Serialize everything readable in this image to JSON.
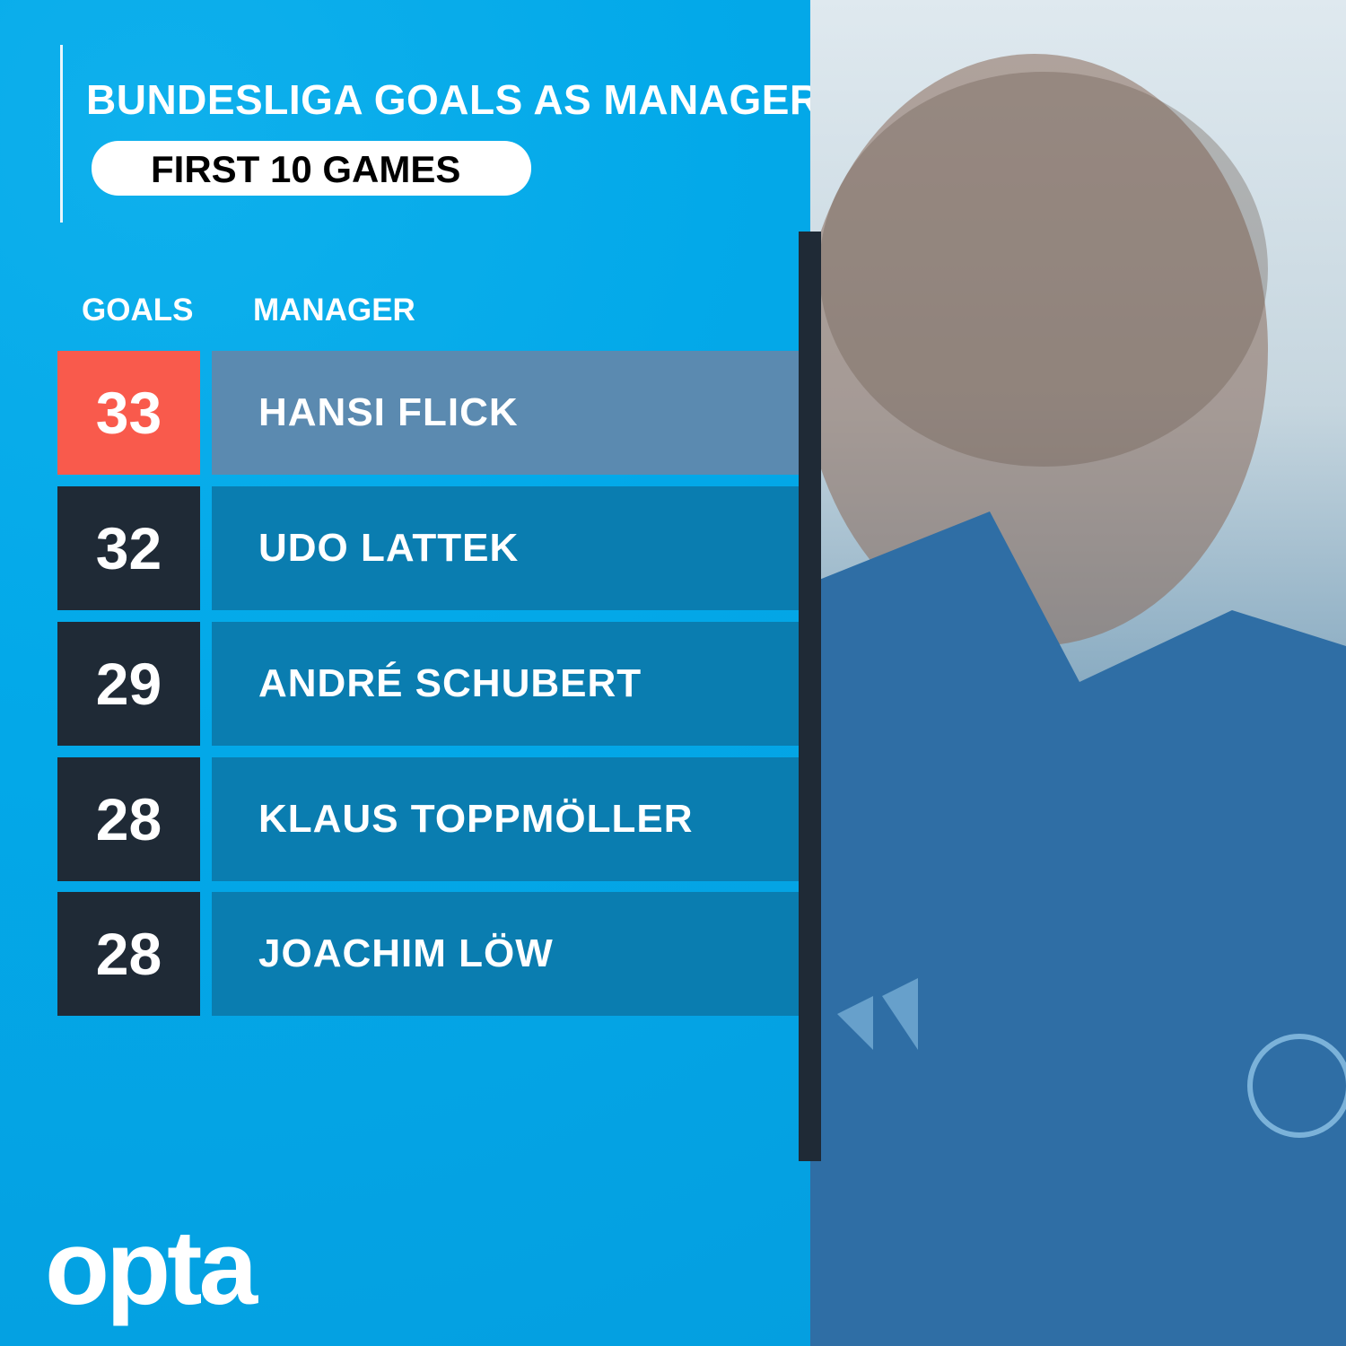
{
  "chart_data": {
    "type": "table",
    "title": "BUNDESLIGA GOALS AS MANAGER",
    "subtitle": "FIRST 10 GAMES",
    "columns": [
      "GOALS",
      "MANAGER"
    ],
    "rows": [
      {
        "goals": "33",
        "manager": "HANSI FLICK",
        "highlight": true
      },
      {
        "goals": "32",
        "manager": "UDO LATTEK"
      },
      {
        "goals": "29",
        "manager": "ANDRÉ SCHUBERT"
      },
      {
        "goals": "28",
        "manager": "KLAUS TOPPMÖLLER"
      },
      {
        "goals": "28",
        "manager": "JOACHIM LÖW"
      }
    ],
    "colors": {
      "background": "#03a9e9",
      "highlight_goal": "#f95a4c",
      "highlight_name": "#5b8ab0",
      "goal": "#1f2a36",
      "name": "#0a7db0"
    }
  },
  "brand": {
    "logo": "opta"
  }
}
